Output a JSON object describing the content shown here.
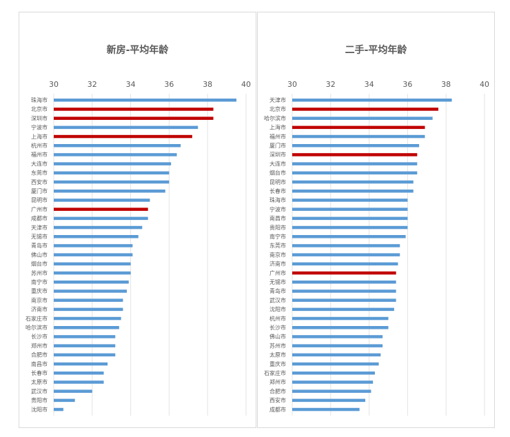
{
  "colors": {
    "normal": "#5B9BD5",
    "highlight": "#C00000",
    "grid": "#e3e3e3"
  },
  "chart_data": [
    {
      "type": "bar",
      "orientation": "horizontal",
      "title": "新房-平均年龄",
      "xlim": [
        30,
        40
      ],
      "xticks": [
        30,
        32,
        34,
        36,
        38,
        40
      ],
      "grid": true,
      "categories": [
        "珠海市",
        "北京市",
        "深圳市",
        "宁波市",
        "上海市",
        "杭州市",
        "福州市",
        "大连市",
        "东莞市",
        "西安市",
        "厦门市",
        "昆明市",
        "广州市",
        "成都市",
        "天津市",
        "无锡市",
        "青岛市",
        "佛山市",
        "烟台市",
        "苏州市",
        "南宁市",
        "重庆市",
        "南京市",
        "济南市",
        "石家庄市",
        "哈尔滨市",
        "长沙市",
        "郑州市",
        "合肥市",
        "南昌市",
        "长春市",
        "太原市",
        "武汉市",
        "贵阳市",
        "沈阳市"
      ],
      "values": [
        39.5,
        38.3,
        38.3,
        37.5,
        37.2,
        36.6,
        36.4,
        36.1,
        36.0,
        36.0,
        35.8,
        35.0,
        34.9,
        34.9,
        34.6,
        34.4,
        34.1,
        34.1,
        34.0,
        34.0,
        33.9,
        33.8,
        33.6,
        33.6,
        33.5,
        33.4,
        33.2,
        33.2,
        33.2,
        32.8,
        32.6,
        32.6,
        32.0,
        31.1,
        30.5
      ],
      "highlighted": [
        "北京市",
        "深圳市",
        "上海市",
        "广州市"
      ]
    },
    {
      "type": "bar",
      "orientation": "horizontal",
      "title": "二手-平均年龄",
      "xlim": [
        30,
        40
      ],
      "xticks": [
        30,
        32,
        34,
        36,
        38,
        40
      ],
      "grid": true,
      "categories": [
        "天津市",
        "北京市",
        "哈尔滨市",
        "上海市",
        "福州市",
        "厦门市",
        "深圳市",
        "大连市",
        "烟台市",
        "昆明市",
        "长春市",
        "珠海市",
        "宁波市",
        "南昌市",
        "贵阳市",
        "南宁市",
        "东莞市",
        "南京市",
        "济南市",
        "广州市",
        "无锡市",
        "青岛市",
        "武汉市",
        "沈阳市",
        "杭州市",
        "长沙市",
        "佛山市",
        "苏州市",
        "太原市",
        "重庆市",
        "石家庄市",
        "郑州市",
        "合肥市",
        "西安市",
        "成都市"
      ],
      "values": [
        38.3,
        37.6,
        37.3,
        36.9,
        36.9,
        36.6,
        36.5,
        36.5,
        36.5,
        36.3,
        36.3,
        36.0,
        36.0,
        36.0,
        36.0,
        35.9,
        35.6,
        35.6,
        35.5,
        35.4,
        35.4,
        35.4,
        35.4,
        35.3,
        35.0,
        35.0,
        34.7,
        34.7,
        34.6,
        34.5,
        34.3,
        34.2,
        34.1,
        33.8,
        33.5
      ],
      "highlighted": [
        "北京市",
        "上海市",
        "深圳市",
        "广州市"
      ]
    }
  ]
}
